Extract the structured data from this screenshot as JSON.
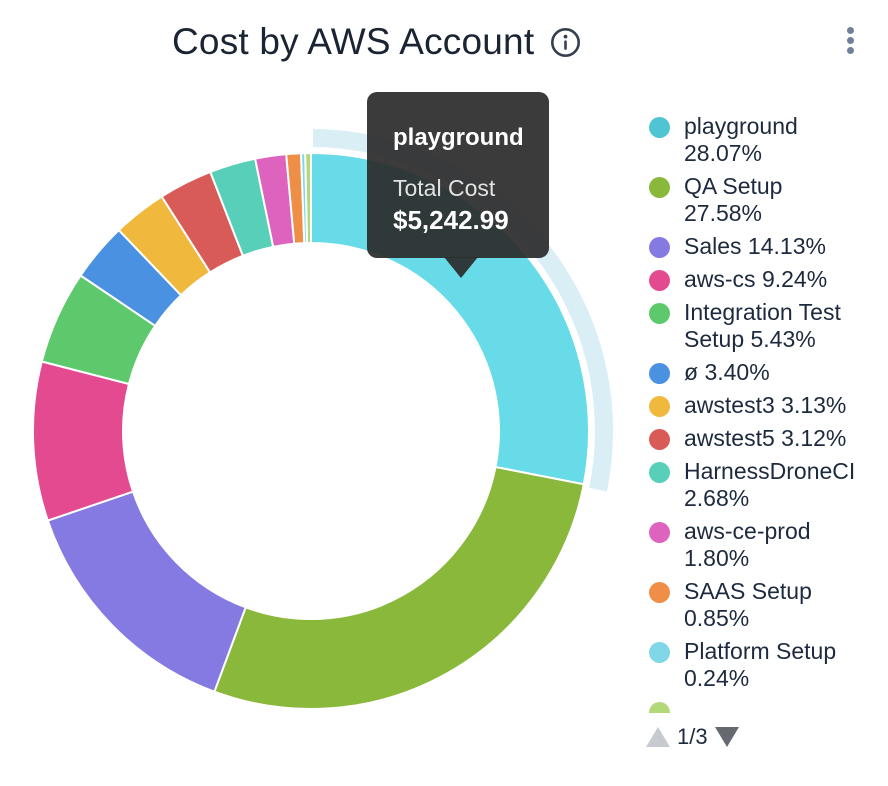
{
  "header": {
    "title": "Cost by AWS Account",
    "info_icon": "info-circle",
    "menu_icon": "kebab-vertical"
  },
  "tooltip": {
    "name": "playground",
    "label": "Total Cost",
    "value": "$5,242.99"
  },
  "pagination": {
    "current": "1/3",
    "up_icon": "triangle-up",
    "down_icon": "triangle-down"
  },
  "colors": {
    "title_text": "#1b2433",
    "legend_text": "#1d2a3e",
    "tooltip_bg": "rgba(44,44,44,0.93)",
    "pager_up": "#c7cad0",
    "pager_down": "#66696f",
    "kebab_dots": "#70809a"
  },
  "chart_data": {
    "type": "pie",
    "donut": true,
    "title": "Cost by AWS Account",
    "unit": "percent of total cost",
    "legend_position": "right",
    "hovered_slice": "playground",
    "hovered_total_cost": "$5,242.99",
    "halo_color": "#daeef6",
    "slices": [
      {
        "label": "playground",
        "value": 28.07,
        "pct": "28.07%",
        "color": "#4fc4d3",
        "hover_fill": "#68dbe8",
        "highlight": true,
        "legend_lines": [
          "playground",
          "28.07%"
        ]
      },
      {
        "label": "QA Setup",
        "value": 27.58,
        "pct": "27.58%",
        "color": "#8ab83b",
        "legend_lines": [
          "QA Setup",
          "27.58%"
        ]
      },
      {
        "label": "Sales",
        "value": 14.13,
        "pct": "14.13%",
        "color": "#8579e2",
        "legend_lines": [
          "Sales 14.13%"
        ]
      },
      {
        "label": "aws-cs",
        "value": 9.24,
        "pct": "9.24%",
        "color": "#e44a90",
        "legend_lines": [
          "aws-cs 9.24%"
        ]
      },
      {
        "label": "Integration Test Setup",
        "value": 5.43,
        "pct": "5.43%",
        "color": "#5dc96c",
        "legend_lines": [
          "Integration Test",
          "Setup 5.43%"
        ]
      },
      {
        "label": "ø",
        "value": 3.4,
        "pct": "3.40%",
        "color": "#4a91e2",
        "legend_lines": [
          "ø 3.40%"
        ]
      },
      {
        "label": "awstest3",
        "value": 3.13,
        "pct": "3.13%",
        "color": "#f0b93e",
        "legend_lines": [
          "awstest3 3.13%"
        ]
      },
      {
        "label": "awstest5",
        "value": 3.12,
        "pct": "3.12%",
        "color": "#d95b58",
        "legend_lines": [
          "awstest5 3.12%"
        ]
      },
      {
        "label": "HarnessDroneCI",
        "value": 2.68,
        "pct": "2.68%",
        "color": "#58cfb9",
        "legend_lines": [
          "HarnessDroneCI",
          "2.68%"
        ]
      },
      {
        "label": "aws-ce-prod",
        "value": 1.8,
        "pct": "1.80%",
        "color": "#de63be",
        "legend_lines": [
          "aws-ce-prod",
          "1.80%"
        ]
      },
      {
        "label": "SAAS Setup",
        "value": 0.85,
        "pct": "0.85%",
        "color": "#ef8e47",
        "legend_lines": [
          "SAAS Setup",
          "0.85%"
        ]
      },
      {
        "label": "Platform Setup",
        "value": 0.24,
        "pct": "0.24%",
        "color": "#7fd7e8",
        "legend_lines": [
          "Platform Setup",
          "0.24%"
        ]
      },
      {
        "label": "",
        "value": 0.33,
        "pct": "",
        "color": "#b3d878",
        "legend_lines": []
      }
    ]
  }
}
